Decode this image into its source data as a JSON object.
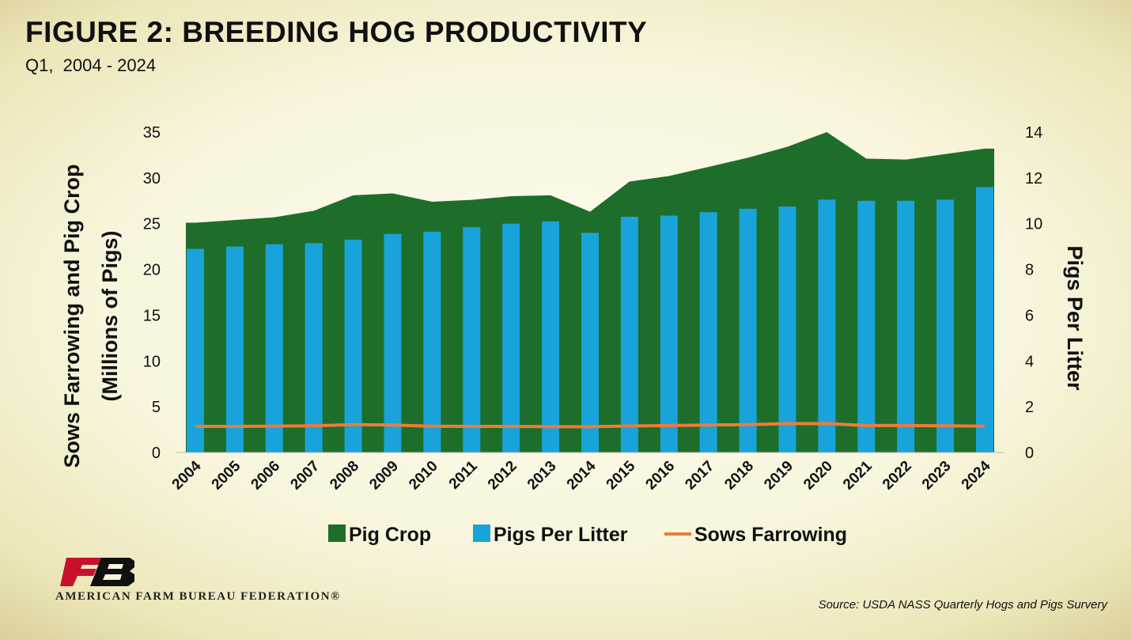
{
  "header": {
    "title": "FIGURE 2: BREEDING HOG PRODUCTIVITY",
    "subtitle": "Q1,  2004 - 2024"
  },
  "footer": {
    "source": "Source: USDA NASS Quarterly Hogs and Pigs Survery",
    "logo_text": "AMERICAN FARM BUREAU FEDERATION®",
    "logo_mark": "FB"
  },
  "colors": {
    "pig_crop": "#1e6e2b",
    "pigs_per_litter": "#18a3da",
    "sows_farrowing": "#ee7b3a"
  },
  "chart_data": {
    "type": "combo",
    "categories": [
      "2004",
      "2005",
      "2006",
      "2007",
      "2008",
      "2009",
      "2010",
      "2011",
      "2012",
      "2013",
      "2014",
      "2015",
      "2016",
      "2017",
      "2018",
      "2019",
      "2020",
      "2021",
      "2022",
      "2023",
      "2024"
    ],
    "ylabel_left": [
      "Sows Farrowing and Pig Crop",
      "(Millions of Pigs)"
    ],
    "ylabel_right": "Pigs Per Litter",
    "ylim_left": [
      0,
      35
    ],
    "ylim_right": [
      0,
      14
    ],
    "yticks_left": [
      "0",
      "5",
      "10",
      "15",
      "20",
      "25",
      "30",
      "35"
    ],
    "yticks_right": [
      "0",
      "2",
      "4",
      "6",
      "8",
      "10",
      "12",
      "14"
    ],
    "series": [
      {
        "name": "Pig Crop",
        "type": "area",
        "axis": "left",
        "values": [
          25.1,
          25.4,
          25.7,
          26.4,
          28.1,
          28.3,
          27.4,
          27.6,
          28.0,
          28.1,
          26.3,
          29.6,
          30.2,
          31.2,
          32.2,
          33.4,
          35.0,
          32.1,
          32.0,
          32.6,
          33.2
        ]
      },
      {
        "name": "Pigs Per Litter",
        "type": "bar",
        "axis": "right",
        "values": [
          8.9,
          9.0,
          9.1,
          9.15,
          9.3,
          9.55,
          9.65,
          9.85,
          10.0,
          10.1,
          9.6,
          10.3,
          10.35,
          10.5,
          10.65,
          10.75,
          11.05,
          11.0,
          11.0,
          11.05,
          11.6
        ]
      },
      {
        "name": "Sows Farrowing",
        "type": "line",
        "axis": "left",
        "values": [
          2.85,
          2.85,
          2.88,
          2.92,
          3.05,
          3.0,
          2.87,
          2.85,
          2.85,
          2.82,
          2.82,
          2.9,
          2.95,
          3.0,
          3.05,
          3.15,
          3.15,
          2.95,
          2.95,
          2.92,
          2.87
        ]
      }
    ],
    "legend": [
      "Pig Crop",
      "Pigs Per Litter",
      "Sows Farrowing"
    ],
    "legend_position": "bottom"
  }
}
